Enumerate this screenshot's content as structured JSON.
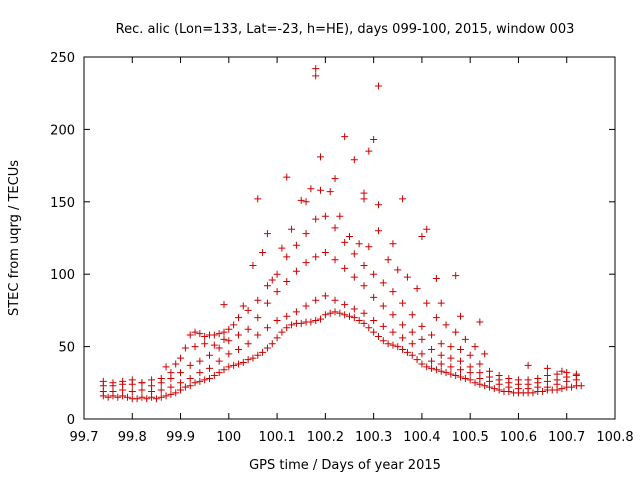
{
  "chart_data": {
    "type": "scatter",
    "title": "Rec. alic (Lon=133, Lat=-23, h=HE), days 099-100, 2015, window 003",
    "xlabel": "GPS time / Days of year 2015",
    "ylabel": "STEC from uqrg / TECUs",
    "xlim": [
      99.7,
      100.8
    ],
    "ylim": [
      0,
      250
    ],
    "x_ticks": [
      "99.7",
      "99.8",
      "99.9",
      "100",
      "100.1",
      "100.2",
      "100.3",
      "100.4",
      "100.5",
      "100.6",
      "100.7",
      "100.8"
    ],
    "y_ticks": [
      "0",
      "50",
      "100",
      "150",
      "200",
      "250"
    ],
    "grid": false,
    "marker": "+",
    "marker_color": "#cc0000",
    "series": [
      {
        "points": [
          [
            99.74,
            16
          ],
          [
            99.75,
            15
          ],
          [
            99.76,
            16
          ],
          [
            99.77,
            15
          ],
          [
            99.78,
            16
          ],
          [
            99.79,
            15
          ],
          [
            99.8,
            14
          ],
          [
            99.81,
            14
          ],
          [
            99.82,
            15
          ],
          [
            99.83,
            14
          ],
          [
            99.84,
            15
          ],
          [
            99.85,
            14
          ],
          [
            99.86,
            15
          ],
          [
            99.87,
            16
          ],
          [
            99.88,
            17
          ],
          [
            99.89,
            18
          ],
          [
            99.9,
            20
          ],
          [
            99.91,
            22
          ],
          [
            99.92,
            23
          ],
          [
            99.93,
            25
          ],
          [
            99.94,
            26
          ],
          [
            99.95,
            27
          ],
          [
            99.96,
            28
          ],
          [
            99.97,
            30
          ],
          [
            99.98,
            32
          ],
          [
            99.99,
            34
          ],
          [
            100.0,
            36
          ],
          [
            100.01,
            37
          ],
          [
            100.02,
            38
          ],
          [
            100.03,
            39
          ],
          [
            100.04,
            41
          ],
          [
            100.05,
            42
          ],
          [
            100.06,
            44
          ],
          [
            100.07,
            46
          ],
          [
            100.08,
            49
          ],
          [
            100.09,
            52
          ],
          [
            100.1,
            56
          ],
          [
            100.11,
            60
          ],
          [
            100.12,
            63
          ],
          [
            100.13,
            65
          ],
          [
            100.14,
            66
          ],
          [
            100.15,
            66
          ],
          [
            100.16,
            67
          ],
          [
            100.17,
            67
          ],
          [
            100.18,
            68
          ],
          [
            100.19,
            69
          ],
          [
            100.2,
            72
          ],
          [
            100.21,
            73
          ],
          [
            100.22,
            74
          ],
          [
            100.23,
            73
          ],
          [
            100.24,
            72
          ],
          [
            100.25,
            71
          ],
          [
            100.26,
            70
          ],
          [
            100.27,
            68
          ],
          [
            100.28,
            66
          ],
          [
            100.29,
            63
          ],
          [
            100.3,
            60
          ],
          [
            100.31,
            57
          ],
          [
            100.32,
            54
          ],
          [
            100.33,
            52
          ],
          [
            100.34,
            51
          ],
          [
            100.35,
            50
          ],
          [
            100.36,
            48
          ],
          [
            100.37,
            46
          ],
          [
            100.38,
            44
          ],
          [
            100.39,
            41
          ],
          [
            100.4,
            38
          ],
          [
            100.41,
            36
          ],
          [
            100.42,
            35
          ],
          [
            100.43,
            34
          ],
          [
            100.44,
            33
          ],
          [
            100.45,
            32
          ],
          [
            100.46,
            31
          ],
          [
            100.47,
            30
          ],
          [
            100.48,
            29
          ],
          [
            100.49,
            28
          ],
          [
            100.5,
            27
          ],
          [
            100.51,
            25
          ],
          [
            100.52,
            24
          ],
          [
            100.53,
            23
          ],
          [
            100.54,
            22
          ],
          [
            100.55,
            21
          ],
          [
            100.56,
            20
          ],
          [
            100.57,
            19
          ],
          [
            100.58,
            19
          ],
          [
            100.59,
            18
          ],
          [
            100.6,
            18
          ],
          [
            100.61,
            18
          ],
          [
            100.62,
            18
          ],
          [
            100.63,
            18
          ],
          [
            100.64,
            19
          ],
          [
            100.65,
            19
          ],
          [
            100.66,
            20
          ],
          [
            100.67,
            20
          ],
          [
            100.68,
            20
          ],
          [
            100.69,
            21
          ],
          [
            100.7,
            22
          ],
          [
            100.71,
            22
          ],
          [
            100.72,
            23
          ],
          [
            100.73,
            23
          ],
          [
            99.74,
            19
          ],
          [
            99.76,
            19
          ],
          [
            99.78,
            20
          ],
          [
            99.8,
            19
          ],
          [
            99.82,
            20
          ],
          [
            99.84,
            19
          ],
          [
            99.86,
            20
          ],
          [
            99.88,
            22
          ],
          [
            99.9,
            25
          ],
          [
            99.92,
            28
          ],
          [
            99.94,
            32
          ],
          [
            99.96,
            35
          ],
          [
            99.98,
            40
          ],
          [
            100.0,
            45
          ],
          [
            100.02,
            48
          ],
          [
            100.04,
            52
          ],
          [
            100.06,
            58
          ],
          [
            100.08,
            63
          ],
          [
            100.1,
            68
          ],
          [
            100.12,
            71
          ],
          [
            100.14,
            74
          ],
          [
            100.16,
            78
          ],
          [
            100.18,
            82
          ],
          [
            100.2,
            85
          ],
          [
            100.22,
            82
          ],
          [
            100.24,
            79
          ],
          [
            100.26,
            76
          ],
          [
            100.28,
            73
          ],
          [
            100.3,
            68
          ],
          [
            100.32,
            64
          ],
          [
            100.34,
            60
          ],
          [
            100.36,
            56
          ],
          [
            100.38,
            52
          ],
          [
            100.4,
            45
          ],
          [
            100.42,
            40
          ],
          [
            100.44,
            38
          ],
          [
            100.46,
            36
          ],
          [
            100.48,
            34
          ],
          [
            100.5,
            32
          ],
          [
            100.52,
            28
          ],
          [
            100.54,
            26
          ],
          [
            100.56,
            24
          ],
          [
            100.58,
            22
          ],
          [
            100.6,
            21
          ],
          [
            100.62,
            21
          ],
          [
            100.64,
            22
          ],
          [
            100.66,
            22
          ],
          [
            100.68,
            24
          ],
          [
            100.7,
            26
          ],
          [
            100.72,
            27
          ],
          [
            99.74,
            23
          ],
          [
            99.76,
            23
          ],
          [
            99.78,
            24
          ],
          [
            99.8,
            24
          ],
          [
            99.82,
            25
          ],
          [
            99.84,
            23
          ],
          [
            99.86,
            25
          ],
          [
            99.88,
            28
          ],
          [
            99.9,
            32
          ],
          [
            99.92,
            37
          ],
          [
            99.94,
            40
          ],
          [
            99.96,
            44
          ],
          [
            99.98,
            49
          ],
          [
            100.0,
            54
          ],
          [
            100.02,
            58
          ],
          [
            100.04,
            62
          ],
          [
            100.06,
            70
          ],
          [
            100.08,
            80
          ],
          [
            100.1,
            88
          ],
          [
            100.12,
            95
          ],
          [
            100.14,
            102
          ],
          [
            100.16,
            108
          ],
          [
            100.18,
            112
          ],
          [
            100.2,
            115
          ],
          [
            100.22,
            110
          ],
          [
            100.24,
            104
          ],
          [
            100.26,
            98
          ],
          [
            100.28,
            92
          ],
          [
            100.3,
            84
          ],
          [
            100.32,
            78
          ],
          [
            100.34,
            72
          ],
          [
            100.36,
            65
          ],
          [
            100.38,
            60
          ],
          [
            100.4,
            55
          ],
          [
            100.42,
            48
          ],
          [
            100.44,
            44
          ],
          [
            100.46,
            42
          ],
          [
            100.48,
            40
          ],
          [
            100.5,
            36
          ],
          [
            100.52,
            32
          ],
          [
            100.54,
            29
          ],
          [
            100.56,
            27
          ],
          [
            100.58,
            25
          ],
          [
            100.6,
            24
          ],
          [
            100.62,
            24
          ],
          [
            100.64,
            25
          ],
          [
            100.66,
            26
          ],
          [
            100.68,
            27
          ],
          [
            100.7,
            29
          ],
          [
            100.72,
            30
          ],
          [
            99.74,
            26
          ],
          [
            99.76,
            25
          ],
          [
            99.78,
            26
          ],
          [
            99.8,
            27
          ],
          [
            99.82,
            25
          ],
          [
            99.84,
            27
          ],
          [
            99.86,
            28
          ],
          [
            99.88,
            32
          ],
          [
            99.9,
            42
          ],
          [
            99.92,
            58
          ],
          [
            99.93,
            60
          ],
          [
            99.94,
            59
          ],
          [
            99.95,
            57
          ],
          [
            99.96,
            58
          ],
          [
            99.97,
            58
          ],
          [
            99.98,
            59
          ],
          [
            99.99,
            60
          ],
          [
            100.0,
            62
          ],
          [
            100.02,
            70
          ],
          [
            100.04,
            75
          ],
          [
            100.06,
            82
          ],
          [
            100.08,
            92
          ],
          [
            100.1,
            100
          ],
          [
            100.12,
            112
          ],
          [
            100.14,
            120
          ],
          [
            100.16,
            128
          ],
          [
            100.18,
            138
          ],
          [
            100.2,
            140
          ],
          [
            100.22,
            132
          ],
          [
            100.24,
            122
          ],
          [
            100.26,
            114
          ],
          [
            100.28,
            106
          ],
          [
            100.3,
            100
          ],
          [
            100.32,
            94
          ],
          [
            100.34,
            88
          ],
          [
            100.36,
            80
          ],
          [
            100.38,
            72
          ],
          [
            100.4,
            64
          ],
          [
            100.42,
            58
          ],
          [
            100.44,
            52
          ],
          [
            100.46,
            50
          ],
          [
            100.48,
            48
          ],
          [
            100.5,
            44
          ],
          [
            100.52,
            38
          ],
          [
            100.54,
            33
          ],
          [
            100.56,
            30
          ],
          [
            100.58,
            28
          ],
          [
            100.6,
            27
          ],
          [
            100.62,
            27
          ],
          [
            100.64,
            28
          ],
          [
            100.66,
            30
          ],
          [
            100.68,
            31
          ],
          [
            100.7,
            32
          ],
          [
            100.72,
            31
          ],
          [
            99.87,
            36
          ],
          [
            99.89,
            38
          ],
          [
            99.91,
            49
          ],
          [
            99.93,
            50
          ],
          [
            99.95,
            52
          ],
          [
            99.97,
            51
          ],
          [
            99.99,
            55
          ],
          [
            100.01,
            65
          ],
          [
            100.03,
            78
          ],
          [
            100.05,
            106
          ],
          [
            100.07,
            115
          ],
          [
            100.09,
            96
          ],
          [
            100.11,
            118
          ],
          [
            100.13,
            131
          ],
          [
            100.15,
            151
          ],
          [
            100.17,
            159
          ],
          [
            100.19,
            158
          ],
          [
            100.21,
            157
          ],
          [
            100.23,
            140
          ],
          [
            100.25,
            126
          ],
          [
            100.27,
            121
          ],
          [
            100.29,
            119
          ],
          [
            100.31,
            130
          ],
          [
            100.33,
            110
          ],
          [
            100.35,
            103
          ],
          [
            100.37,
            98
          ],
          [
            100.39,
            90
          ],
          [
            100.41,
            80
          ],
          [
            100.43,
            70
          ],
          [
            100.45,
            65
          ],
          [
            100.47,
            60
          ],
          [
            100.49,
            55
          ],
          [
            100.51,
            50
          ],
          [
            100.53,
            45
          ],
          [
            99.99,
            79
          ],
          [
            100.06,
            152
          ],
          [
            100.08,
            128
          ],
          [
            100.12,
            167
          ],
          [
            100.16,
            150
          ],
          [
            100.18,
            242
          ],
          [
            100.18,
            237
          ],
          [
            100.19,
            181
          ],
          [
            100.22,
            166
          ],
          [
            100.24,
            195
          ],
          [
            100.26,
            179
          ],
          [
            100.28,
            156
          ],
          [
            100.28,
            152
          ],
          [
            100.29,
            185
          ],
          [
            100.3,
            193
          ],
          [
            100.31,
            230
          ],
          [
            100.31,
            148
          ],
          [
            100.34,
            121
          ],
          [
            100.36,
            152
          ],
          [
            100.4,
            126
          ],
          [
            100.41,
            131
          ],
          [
            100.43,
            97
          ],
          [
            100.44,
            80
          ],
          [
            100.47,
            99
          ],
          [
            100.48,
            71
          ],
          [
            100.52,
            67
          ],
          [
            100.62,
            37
          ],
          [
            100.66,
            35
          ],
          [
            100.69,
            33
          ]
        ]
      }
    ]
  }
}
